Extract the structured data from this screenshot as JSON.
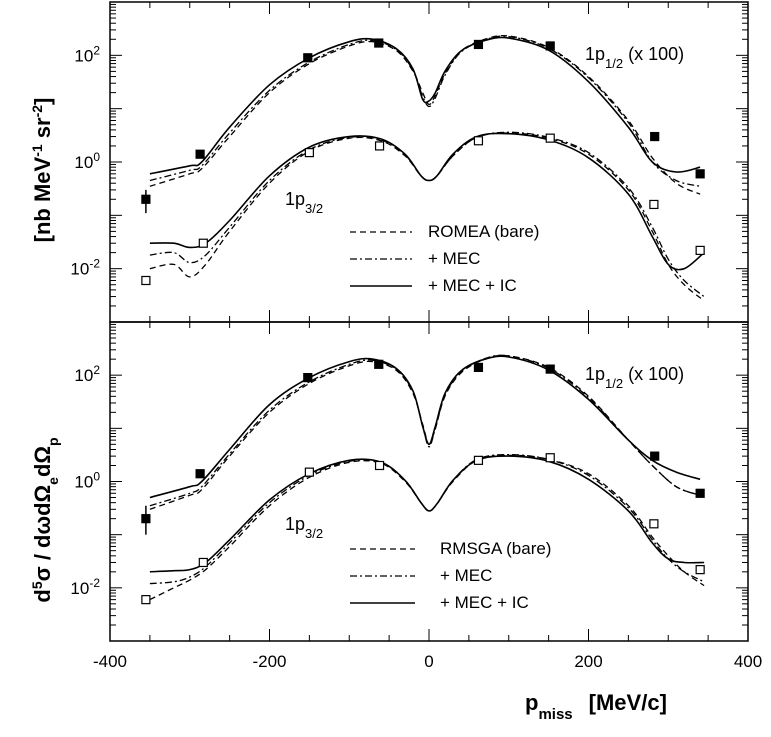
{
  "chart_data": [
    {
      "type": "line",
      "panel": "top",
      "yscale": "log",
      "xlim": [
        -400,
        400
      ],
      "ylim_exponent": [
        -3,
        3
      ],
      "xticks": [
        -400,
        -200,
        0,
        200,
        400
      ],
      "xtick_labels": [
        "-400",
        "-200",
        "0",
        "200",
        "400"
      ],
      "yticks": [
        {
          "value": 100,
          "base": "10",
          "exp": "2"
        },
        {
          "value": 1,
          "base": "10",
          "exp": "0"
        },
        {
          "value": 0.01,
          "base": "10",
          "exp": "-2"
        }
      ],
      "curve_labels": [
        {
          "text": "1p",
          "sub": "1/2",
          "suffix": " (x 100)"
        },
        {
          "text": "1p",
          "sub": "3/2",
          "suffix": ""
        }
      ],
      "legend": [
        {
          "label": "ROMEA (bare)",
          "style": "dashed"
        },
        {
          "label": "+ MEC",
          "style": "dashdot"
        },
        {
          "label": "+ MEC + IC",
          "style": "solid"
        }
      ],
      "series": [
        {
          "name": "1p1/2 ROMEA (bare)",
          "style": "dashed",
          "x": [
            -350,
            -300,
            -285,
            -250,
            -200,
            -150,
            -100,
            -70,
            -40,
            -20,
            -8,
            0,
            8,
            20,
            40,
            70,
            100,
            150,
            200,
            250,
            280,
            310,
            340
          ],
          "y": [
            0.35,
            0.6,
            0.75,
            3,
            20,
            70,
            150,
            180,
            120,
            50,
            20,
            12,
            18,
            45,
            120,
            200,
            230,
            140,
            40,
            6,
            1.2,
            0.4,
            0.25
          ]
        },
        {
          "name": "1p1/2 + MEC",
          "style": "dashdot",
          "x": [
            -350,
            -300,
            -285,
            -250,
            -200,
            -150,
            -100,
            -70,
            -40,
            -20,
            -8,
            0,
            8,
            20,
            40,
            70,
            100,
            150,
            200,
            250,
            280,
            310,
            340
          ],
          "y": [
            0.45,
            0.7,
            0.85,
            3.5,
            22,
            75,
            160,
            190,
            125,
            52,
            17,
            11,
            16,
            42,
            115,
            195,
            225,
            135,
            38,
            5.5,
            1.0,
            0.45,
            0.35
          ]
        },
        {
          "name": "1p1/2 + MEC + IC",
          "style": "solid",
          "x": [
            -350,
            -300,
            -285,
            -250,
            -200,
            -150,
            -100,
            -70,
            -40,
            -20,
            -8,
            0,
            8,
            20,
            40,
            70,
            100,
            150,
            200,
            250,
            280,
            310,
            340
          ],
          "y": [
            0.6,
            0.85,
            1.0,
            4.5,
            28,
            90,
            180,
            200,
            130,
            55,
            15,
            14,
            20,
            50,
            120,
            190,
            210,
            125,
            32,
            4.5,
            1.0,
            0.65,
            0.8
          ]
        },
        {
          "name": "1p3/2 ROMEA (bare)",
          "style": "dashed",
          "x": [
            -350,
            -320,
            -300,
            -280,
            -250,
            -200,
            -150,
            -100,
            -60,
            -30,
            -10,
            0,
            10,
            30,
            60,
            100,
            150,
            200,
            250,
            280,
            300,
            320,
            345
          ],
          "y": [
            0.01,
            0.012,
            0.007,
            0.012,
            0.05,
            0.4,
            1.6,
            2.8,
            2.5,
            1.3,
            0.55,
            0.45,
            0.55,
            1.3,
            2.9,
            3.5,
            2.8,
            1.4,
            0.3,
            0.05,
            0.012,
            0.005,
            0.0025
          ]
        },
        {
          "name": "1p3/2 + MEC",
          "style": "dashdot",
          "x": [
            -350,
            -320,
            -300,
            -280,
            -250,
            -200,
            -150,
            -100,
            -60,
            -30,
            -10,
            0,
            10,
            30,
            60,
            100,
            150,
            200,
            250,
            280,
            300,
            320,
            345
          ],
          "y": [
            0.018,
            0.02,
            0.013,
            0.018,
            0.06,
            0.45,
            1.7,
            2.9,
            2.6,
            1.35,
            0.55,
            0.45,
            0.55,
            1.3,
            2.9,
            3.6,
            2.9,
            1.5,
            0.33,
            0.06,
            0.015,
            0.006,
            0.003
          ]
        },
        {
          "name": "1p3/2 + MEC + IC",
          "style": "solid",
          "x": [
            -350,
            -320,
            -300,
            -280,
            -250,
            -200,
            -150,
            -100,
            -60,
            -30,
            -10,
            0,
            10,
            30,
            60,
            100,
            150,
            200,
            250,
            280,
            300,
            320,
            345
          ],
          "y": [
            0.03,
            0.03,
            0.025,
            0.03,
            0.08,
            0.55,
            1.9,
            3.0,
            2.7,
            1.4,
            0.55,
            0.45,
            0.55,
            1.4,
            3.0,
            3.4,
            2.6,
            1.2,
            0.25,
            0.04,
            0.012,
            0.01,
            0.02
          ]
        }
      ],
      "points": [
        {
          "name": "1p1/2 data",
          "marker": "filled-square",
          "x": [
            -355,
            -287,
            -152,
            -63,
            62,
            152,
            283,
            340
          ],
          "y": [
            0.2,
            1.4,
            90,
            170,
            160,
            150,
            3.0,
            0.6
          ],
          "yerr_lo": [
            0.11,
            0,
            0,
            0,
            0,
            0,
            0,
            0
          ],
          "yerr_hi": [
            0.3,
            0,
            0,
            0,
            0,
            0,
            0,
            0
          ]
        },
        {
          "name": "1p3/2 data",
          "marker": "open-square",
          "x": [
            -355,
            -283,
            -150,
            -62,
            62,
            152,
            282,
            340
          ],
          "y": [
            0.006,
            0.03,
            1.5,
            2.0,
            2.5,
            2.8,
            0.16,
            0.022
          ]
        }
      ]
    },
    {
      "type": "line",
      "panel": "bottom",
      "yscale": "log",
      "xlim": [
        -400,
        400
      ],
      "ylim_exponent": [
        -3,
        3
      ],
      "xticks": [
        -400,
        -200,
        0,
        200,
        400
      ],
      "xtick_labels": [
        "-400",
        "-200",
        "0",
        "200",
        "400"
      ],
      "yticks": [
        {
          "value": 100,
          "base": "10",
          "exp": "2"
        },
        {
          "value": 1,
          "base": "10",
          "exp": "0"
        },
        {
          "value": 0.01,
          "base": "10",
          "exp": "-2"
        }
      ],
      "curve_labels": [
        {
          "text": "1p",
          "sub": "1/2",
          "suffix": " (x 100)"
        },
        {
          "text": "1p",
          "sub": "3/2",
          "suffix": ""
        }
      ],
      "legend": [
        {
          "label": "RMSGA (bare)",
          "style": "dashed"
        },
        {
          "label": "+ MEC",
          "style": "dashdot"
        },
        {
          "label": "+ MEC + IC",
          "style": "solid"
        }
      ],
      "series": [
        {
          "name": "1p1/2 RMSGA (bare)",
          "style": "dashed",
          "x": [
            -350,
            -300,
            -285,
            -250,
            -200,
            -150,
            -100,
            -70,
            -40,
            -20,
            -8,
            0,
            8,
            20,
            40,
            70,
            100,
            150,
            200,
            250,
            280,
            310,
            340
          ],
          "y": [
            0.3,
            0.55,
            0.7,
            3.0,
            20,
            70,
            150,
            180,
            120,
            45,
            12,
            5,
            10,
            40,
            110,
            200,
            230,
            140,
            40,
            6,
            2.0,
            0.8,
            0.55
          ]
        },
        {
          "name": "1p1/2 + MEC",
          "style": "dashdot",
          "x": [
            -350,
            -300,
            -285,
            -250,
            -200,
            -150,
            -100,
            -70,
            -40,
            -20,
            -8,
            0,
            8,
            20,
            40,
            70,
            100,
            150,
            200,
            250,
            280,
            310,
            340
          ],
          "y": [
            0.35,
            0.6,
            0.8,
            3.3,
            22,
            75,
            160,
            190,
            125,
            48,
            11,
            4.5,
            10,
            42,
            115,
            205,
            230,
            135,
            38,
            6,
            2.0,
            0.8,
            0.55
          ]
        },
        {
          "name": "1p1/2 + MEC + IC",
          "style": "solid",
          "x": [
            -350,
            -300,
            -285,
            -250,
            -200,
            -150,
            -100,
            -70,
            -40,
            -20,
            -8,
            0,
            8,
            20,
            40,
            70,
            100,
            150,
            200,
            250,
            280,
            310,
            340
          ],
          "y": [
            0.5,
            0.8,
            1.0,
            4.0,
            28,
            90,
            180,
            200,
            130,
            50,
            11,
            5,
            11,
            45,
            120,
            200,
            220,
            125,
            35,
            6,
            2.5,
            1.5,
            1.1
          ]
        },
        {
          "name": "1p3/2 RMSGA (bare)",
          "style": "dashed",
          "x": [
            -350,
            -320,
            -300,
            -280,
            -250,
            -200,
            -150,
            -100,
            -60,
            -30,
            -10,
            0,
            10,
            30,
            60,
            100,
            150,
            200,
            250,
            280,
            300,
            320,
            345
          ],
          "y": [
            0.006,
            0.01,
            0.014,
            0.022,
            0.06,
            0.35,
            1.2,
            2.3,
            2.2,
            1.0,
            0.4,
            0.28,
            0.38,
            1.0,
            2.5,
            3.1,
            2.6,
            1.4,
            0.35,
            0.09,
            0.04,
            0.02,
            0.011
          ]
        },
        {
          "name": "1p3/2 + MEC",
          "style": "dashdot",
          "x": [
            -350,
            -320,
            -300,
            -280,
            -250,
            -200,
            -150,
            -100,
            -60,
            -30,
            -10,
            0,
            10,
            30,
            60,
            100,
            150,
            200,
            250,
            280,
            300,
            320,
            345
          ],
          "y": [
            0.012,
            0.013,
            0.016,
            0.025,
            0.07,
            0.4,
            1.3,
            2.4,
            2.3,
            1.05,
            0.4,
            0.28,
            0.38,
            1.05,
            2.6,
            3.2,
            2.6,
            1.3,
            0.32,
            0.08,
            0.035,
            0.02,
            0.013
          ]
        },
        {
          "name": "1p3/2 + MEC + IC",
          "style": "solid",
          "x": [
            -350,
            -320,
            -300,
            -280,
            -250,
            -200,
            -150,
            -100,
            -60,
            -30,
            -10,
            0,
            10,
            30,
            60,
            100,
            150,
            200,
            250,
            280,
            300,
            320,
            345
          ],
          "y": [
            0.02,
            0.021,
            0.022,
            0.03,
            0.08,
            0.45,
            1.4,
            2.5,
            2.3,
            1.05,
            0.4,
            0.28,
            0.38,
            1.05,
            2.5,
            3.0,
            2.4,
            1.1,
            0.28,
            0.07,
            0.035,
            0.03,
            0.03
          ]
        }
      ],
      "points": [
        {
          "name": "1p1/2 data",
          "marker": "filled-square",
          "x": [
            -355,
            -287,
            -152,
            -63,
            62,
            152,
            283,
            340
          ],
          "y": [
            0.2,
            1.4,
            90,
            160,
            140,
            130,
            3.0,
            0.6
          ],
          "yerr_lo": [
            0.1,
            0,
            0,
            0,
            0,
            0,
            0,
            0
          ],
          "yerr_hi": [
            0.35,
            0,
            0,
            0,
            0,
            0,
            0,
            0
          ]
        },
        {
          "name": "1p3/2 data",
          "marker": "open-square",
          "x": [
            -355,
            -283,
            -150,
            -62,
            62,
            152,
            282,
            340
          ],
          "y": [
            0.006,
            0.03,
            1.5,
            2.0,
            2.5,
            2.8,
            0.16,
            0.022
          ]
        }
      ]
    }
  ],
  "axes": {
    "xlabel": "p",
    "xlabel_sub": "miss",
    "xlabel_unit": "[MeV/c]",
    "ylabel_unit": {
      "pre": "[nb MeV",
      "sup1": "-1",
      "mid": " sr",
      "sup2": "-2",
      "post": "]"
    },
    "ylabel_formula": {
      "d": "d",
      "sup5": "5",
      "sigma": "σ / dωdΩ",
      "sub_e": "e",
      "dOmega": "dΩ",
      "sub_p": "p"
    }
  }
}
